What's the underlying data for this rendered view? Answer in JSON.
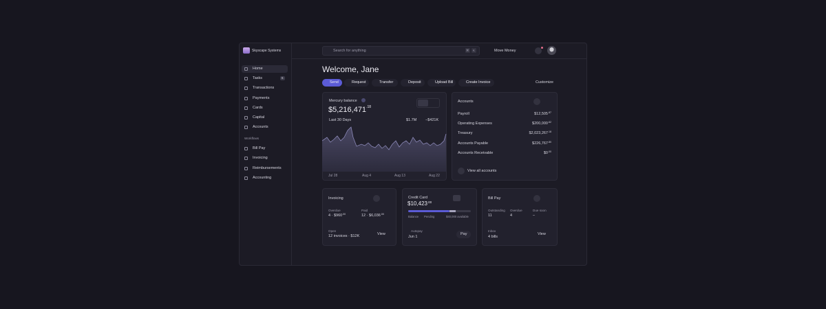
{
  "sidebar": {
    "company": "Skyscape Systems",
    "nav": [
      {
        "label": "Home"
      },
      {
        "label": "Tasks",
        "badge": "6"
      },
      {
        "label": "Transactions"
      },
      {
        "label": "Payments"
      },
      {
        "label": "Cards"
      },
      {
        "label": "Capital"
      },
      {
        "label": "Accounts"
      }
    ],
    "section": "Workflows",
    "workflows": [
      {
        "label": "Bill Pay"
      },
      {
        "label": "Invoicing"
      },
      {
        "label": "Reimbursements"
      },
      {
        "label": "Accounting"
      }
    ]
  },
  "topbar": {
    "search": "Search for anything",
    "shortcut": [
      "⌘",
      "K"
    ],
    "move_money": "Move Money"
  },
  "welcome": "Welcome, Jane",
  "actions": [
    "Send",
    "Request",
    "Transfer",
    "Deposit",
    "Upload Bill",
    "Create Invoice"
  ],
  "customize": "Customize",
  "balance": {
    "label": "Mercury balance",
    "amount": "$5,216,471",
    "cents": ".18",
    "period": "Last 30 Days",
    "inflow": "$1.7M",
    "outflow": "−$421K",
    "dates": [
      "Jul 28",
      "Aug 4",
      "Aug 13",
      "Aug 22"
    ]
  },
  "accounts": {
    "title": "Accounts",
    "rows": [
      {
        "name": "Payroll",
        "amount": "$12,505",
        "cents": ".87"
      },
      {
        "name": "Operating Expenses",
        "amount": "$200,000",
        "cents": ".62"
      },
      {
        "name": "Treasury",
        "amount": "$2,023,267",
        "cents": ".18"
      },
      {
        "name": "Accounts Payable",
        "amount": "$226,767",
        "cents": ".80"
      },
      {
        "name": "Accounts Receivable",
        "amount": "$0",
        "cents": ".00"
      }
    ],
    "view_all": "View all accounts"
  },
  "invoicing": {
    "title": "Invoicing",
    "overdue_label": "Overdue",
    "overdue": "4 · $960",
    "overdue_cents": ".00",
    "paid_label": "Paid",
    "paid": "12 · $6,036",
    "paid_cents": ".00",
    "open_label": "Open",
    "open": "12 invoices · $12K",
    "view": "View"
  },
  "credit_card": {
    "title": "Credit Card",
    "amount": "$10,423",
    "cents": ".00",
    "balance": "Balance",
    "pending": "Pending",
    "available": "$40,000 available",
    "autopay": "Autopay",
    "autopay_date": "Jun 1",
    "pay": "Pay"
  },
  "bill_pay": {
    "title": "Bill Pay",
    "stats": [
      {
        "label": "Outstanding",
        "value": "11"
      },
      {
        "label": "Overdue",
        "value": "4"
      },
      {
        "label": "Due soon",
        "value": "–"
      }
    ],
    "inbox_label": "Inbox",
    "inbox": "4 bills",
    "view": "View"
  }
}
